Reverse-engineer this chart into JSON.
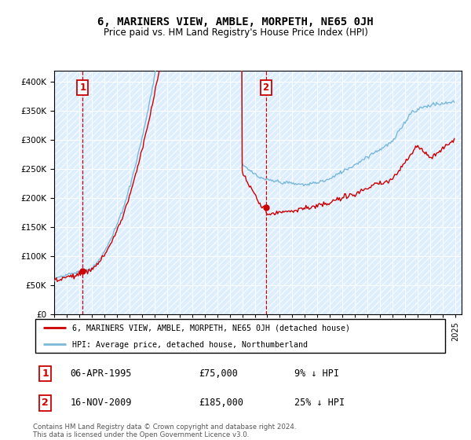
{
  "title": "6, MARINERS VIEW, AMBLE, MORPETH, NE65 0JH",
  "subtitle": "Price paid vs. HM Land Registry's House Price Index (HPI)",
  "legend_line1": "6, MARINERS VIEW, AMBLE, MORPETH, NE65 0JH (detached house)",
  "legend_line2": "HPI: Average price, detached house, Northumberland",
  "footnote": "Contains HM Land Registry data © Crown copyright and database right 2024.\nThis data is licensed under the Open Government Licence v3.0.",
  "sale1_date": "06-APR-1995",
  "sale1_price": 75000,
  "sale1_label": "9% ↓ HPI",
  "sale2_date": "16-NOV-2009",
  "sale2_price": 185000,
  "sale2_label": "25% ↓ HPI",
  "hpi_color": "#7ab8d9",
  "price_color": "#cc0000",
  "vline_color": "#cc0000",
  "bg_color": "#ddeeff",
  "ylim": [
    0,
    420000
  ],
  "yticks": [
    0,
    50000,
    100000,
    150000,
    200000,
    250000,
    300000,
    350000,
    400000
  ],
  "xlim_start": 1993.0,
  "xlim_end": 2025.5,
  "sale1_x": 1995.27,
  "sale2_x": 2009.88,
  "xticks": [
    1993,
    1994,
    1995,
    1996,
    1997,
    1998,
    1999,
    2000,
    2001,
    2002,
    2003,
    2004,
    2005,
    2006,
    2007,
    2008,
    2009,
    2010,
    2011,
    2012,
    2013,
    2014,
    2015,
    2016,
    2017,
    2018,
    2019,
    2020,
    2021,
    2022,
    2023,
    2024,
    2025
  ]
}
